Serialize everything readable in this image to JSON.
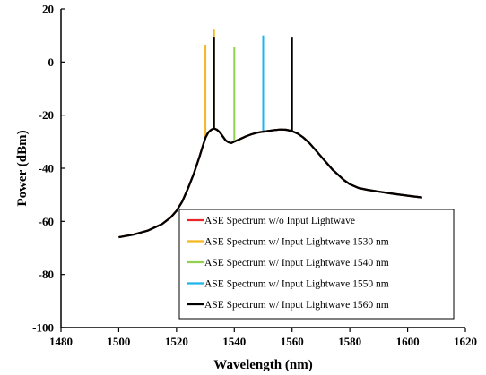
{
  "chart_data": {
    "type": "line",
    "title": "",
    "xlabel": "Wavelength (nm)",
    "ylabel": "Power (dBm)",
    "xlim": [
      1480,
      1620
    ],
    "ylim": [
      -100,
      20
    ],
    "xticks": [
      1480,
      1500,
      1520,
      1540,
      1560,
      1580,
      1600,
      1620
    ],
    "yticks": [
      20,
      0,
      -20,
      -40,
      -60,
      -80,
      -100
    ],
    "grid": false,
    "legend_position": "bottom-center",
    "x": [
      1500,
      1505,
      1510,
      1515,
      1518,
      1520,
      1522,
      1524,
      1526,
      1528,
      1529,
      1530,
      1531,
      1532,
      1533,
      1534,
      1535,
      1536,
      1537,
      1538,
      1539,
      1540,
      1542,
      1544,
      1546,
      1548,
      1550,
      1552,
      1554,
      1556,
      1558,
      1560,
      1562,
      1564,
      1566,
      1568,
      1570,
      1572,
      1574,
      1576,
      1578,
      1580,
      1583,
      1586,
      1590,
      1595,
      1600,
      1605
    ],
    "series": [
      {
        "name": "ASE Spectrum w/o Input Lightwave",
        "color": "#e8262a",
        "values": [
          -66,
          -65,
          -63.5,
          -61,
          -58.5,
          -56,
          -52.5,
          -47.5,
          -42,
          -35.5,
          -32,
          -28.5,
          -26.5,
          -25.5,
          -25,
          -25.5,
          -26.5,
          -28,
          -29.5,
          -30.2,
          -30.5,
          -30,
          -29,
          -28,
          -27.2,
          -26.6,
          -26.2,
          -25.9,
          -25.6,
          -25.4,
          -25.5,
          -26,
          -27,
          -28.5,
          -30.5,
          -33,
          -35.5,
          -38,
          -40.5,
          -42.5,
          -44.5,
          -46,
          -47.4,
          -48.1,
          -48.8,
          -49.6,
          -50.3,
          -51
        ],
        "peak": null
      },
      {
        "name": "ASE Spectrum w/ Input Lightwave 1530 nm",
        "color": "#f5b71e",
        "peak": {
          "x": 1530,
          "y": 6.5
        }
      },
      {
        "name": "ASE Spectrum w/ Input  Lightwave 1540 nm",
        "color": "#92d050",
        "peak": {
          "x": 1540,
          "y": 5.5
        }
      },
      {
        "name": "ASE Spectrum w/ Input  Lightwave 1550 nm",
        "color": "#1fb4ec",
        "peak": {
          "x": 1550,
          "y": 10
        }
      },
      {
        "name": "ASE Spectrum w/ Input  Lightwave 1560 nm",
        "color": "#000000",
        "peak": {
          "x": 1560,
          "y": 9.5
        }
      }
    ],
    "extra_peaks": [
      {
        "x": 1533,
        "y": 12.5,
        "color": "#f5b71e"
      },
      {
        "x": 1533,
        "y": 9.5,
        "color": "#000000"
      }
    ]
  }
}
